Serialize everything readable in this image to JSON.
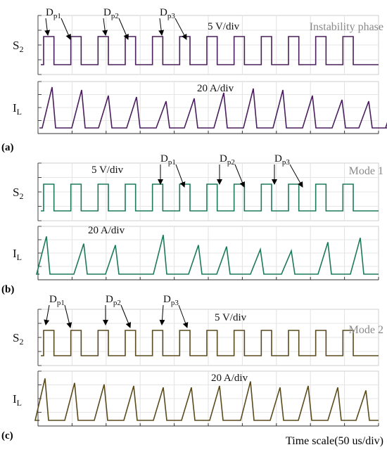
{
  "chart_data": [
    {
      "type": "line",
      "tag": "(a)",
      "title": "Instability phase",
      "color": "#4a1f5c",
      "s2": {
        "label_main": "S",
        "label_sub": "2",
        "scale": "5 V/div",
        "periods": 12
      },
      "il": {
        "label_main": "I",
        "label_sub": "L",
        "scale": "20 A/div",
        "peaks_amp": [
          2.9,
          2.7,
          2.3,
          2.2,
          1.9,
          2.1,
          2.5,
          2.8,
          2.7,
          2.3,
          2.0,
          1.9,
          2.1
        ],
        "peak_times": [
          20,
          62,
          100,
          140,
          182,
          222,
          264,
          306,
          348,
          390,
          432,
          470,
          508
        ]
      },
      "annotations": [
        {
          "main": "D",
          "sub": "p1"
        },
        {
          "main": "D",
          "sub": "p2"
        },
        {
          "main": "D",
          "sub": "p3"
        }
      ]
    },
    {
      "type": "line",
      "tag": "(b)",
      "title": "Mode 1",
      "color": "#1e7a5a",
      "s2": {
        "label_main": "S",
        "label_sub": "2",
        "scale": "5 V/div",
        "periods": 12
      },
      "il": {
        "label_main": "I",
        "label_sub": "L",
        "scale": "20 A/div",
        "peaks_amp": [
          2.6,
          2.1,
          2.0,
          2.7,
          2.0,
          1.9,
          1.7,
          1.6,
          2.2,
          2.5
        ],
        "peak_times": [
          12,
          65,
          110,
          178,
          228,
          268,
          316,
          360,
          412,
          458
        ]
      },
      "annotations": [
        {
          "main": "D",
          "sub": "p1"
        },
        {
          "main": "D",
          "sub": "p2"
        },
        {
          "main": "D",
          "sub": "p3"
        }
      ]
    },
    {
      "type": "line",
      "tag": "(c)",
      "title": "Mode 2",
      "color": "#5a4a1e",
      "s2": {
        "label_main": "S",
        "label_sub": "2",
        "scale": "5 V/div",
        "periods": 12
      },
      "il": {
        "label_main": "I",
        "label_sub": "L",
        "scale": "20 A/div",
        "peaks_amp": [
          2.8,
          2.5,
          2.4,
          2.3,
          2.2,
          2.2,
          2.3,
          2.6,
          2.2,
          2.3,
          2.2,
          2.0
        ],
        "peak_times": [
          10,
          52,
          94,
          136,
          178,
          218,
          258,
          302,
          344,
          384,
          426,
          466
        ]
      },
      "annotations": [
        {
          "main": "D",
          "sub": "p1"
        },
        {
          "main": "D",
          "sub": "p2"
        },
        {
          "main": "D",
          "sub": "p3"
        }
      ]
    }
  ],
  "footer": "Time scale(50 us/div)"
}
